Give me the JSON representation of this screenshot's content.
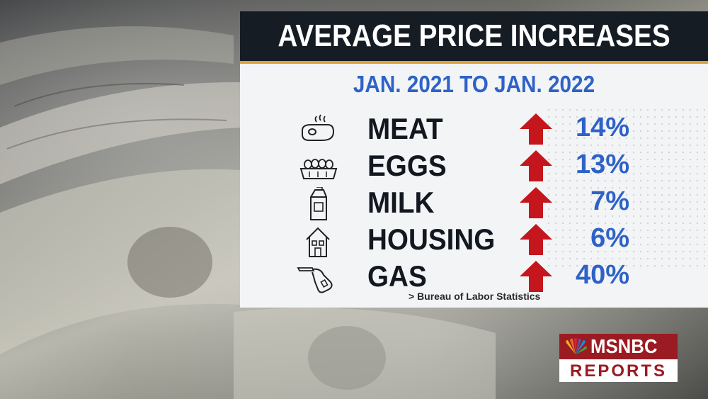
{
  "title": "AVERAGE PRICE INCREASES",
  "subtitle": "JAN. 2021 TO JAN. 2022",
  "items": [
    {
      "label": "MEAT",
      "value": "14%",
      "icon": "steak-icon"
    },
    {
      "label": "EGGS",
      "value": "13%",
      "icon": "egg-carton-icon"
    },
    {
      "label": "MILK",
      "value": "7%",
      "icon": "milk-carton-icon"
    },
    {
      "label": "HOUSING",
      "value": "6%",
      "icon": "house-icon"
    },
    {
      "label": "GAS",
      "value": "40%",
      "icon": "gas-pump-nozzle-icon"
    }
  ],
  "source": ">   Bureau of Labor Statistics",
  "logo": {
    "brand": "MSNBC",
    "show": "REPORTS"
  },
  "colors": {
    "header_bg": "#161c24",
    "accent_gold": "#d9a23a",
    "value_blue": "#2e62c7",
    "arrow_red": "#c4161c",
    "logo_red": "#9b1b22"
  }
}
